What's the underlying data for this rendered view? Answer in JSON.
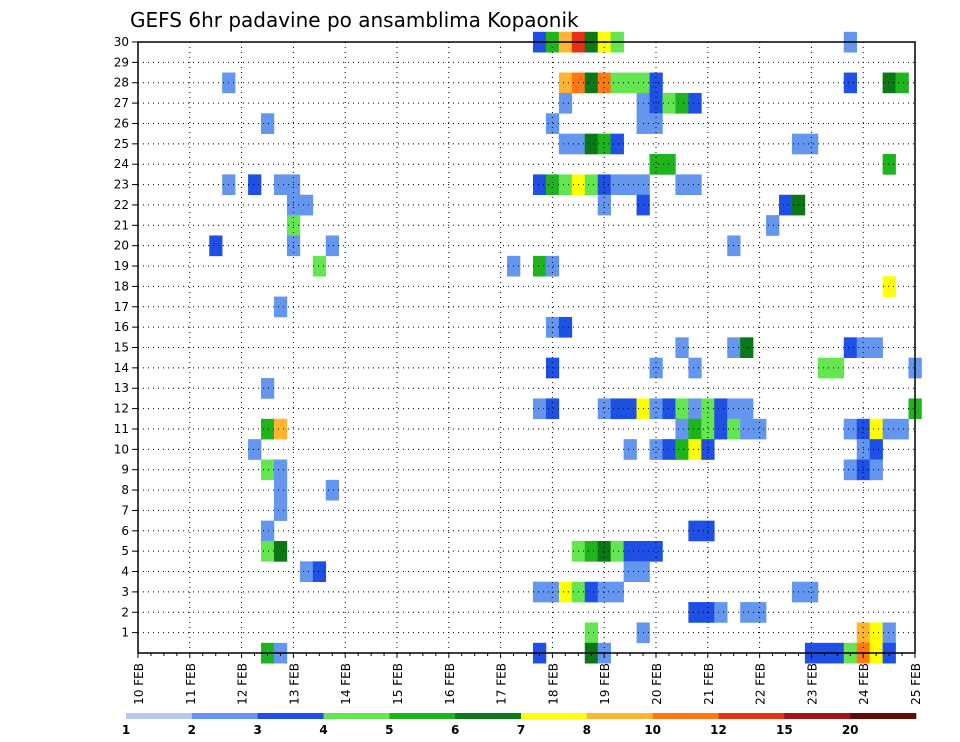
{
  "chart_data": {
    "type": "heatmap",
    "title": "GEFS 6hr padavine po ansamblima Kopaonik",
    "xlabel": "",
    "ylabel": "",
    "x_tick_labels": [
      "10 FEB",
      "11 FEB",
      "12 FEB",
      "13 FEB",
      "14 FEB",
      "15 FEB",
      "16 FEB",
      "17 FEB",
      "18 FEB",
      "19 FEB",
      "20 FEB",
      "21 FEB",
      "22 FEB",
      "23 FEB",
      "24 FEB",
      "25 FEB"
    ],
    "y_tick_labels": [
      "1",
      "2",
      "3",
      "4",
      "5",
      "6",
      "7",
      "8",
      "9",
      "10",
      "11",
      "12",
      "13",
      "14",
      "15",
      "16",
      "17",
      "18",
      "19",
      "20",
      "21",
      "22",
      "23",
      "24",
      "25",
      "26",
      "27",
      "28",
      "29",
      "30"
    ],
    "y_range": [
      0,
      30
    ],
    "x_range_days": [
      10,
      25
    ],
    "grid": true,
    "colorbar": {
      "position": "bottom",
      "tick_labels": [
        "1",
        "2",
        "3",
        "4",
        "5",
        "6",
        "7",
        "8",
        "10",
        "12",
        "15",
        "20"
      ],
      "colors": [
        "#b4c8f0",
        "#6496f0",
        "#1e50e6",
        "#64e650",
        "#1eb41e",
        "#0a7814",
        "#ffff00",
        "#ffb432",
        "#ff7814",
        "#e63214",
        "#a01414",
        "#640a0a"
      ]
    },
    "cells": [
      [
        17.75,
        30,
        2
      ],
      [
        18.0,
        30,
        4
      ],
      [
        18.25,
        30,
        7
      ],
      [
        18.5,
        30,
        9
      ],
      [
        18.75,
        30,
        5
      ],
      [
        19.0,
        30,
        6
      ],
      [
        19.25,
        30,
        3
      ],
      [
        23.75,
        30,
        1
      ],
      [
        11.75,
        28,
        1
      ],
      [
        18.25,
        28,
        7
      ],
      [
        18.5,
        28,
        8
      ],
      [
        18.75,
        28,
        5
      ],
      [
        19.0,
        28,
        8
      ],
      [
        19.25,
        28,
        3
      ],
      [
        19.5,
        28,
        3
      ],
      [
        19.75,
        28,
        3
      ],
      [
        20.0,
        28,
        2
      ],
      [
        23.75,
        28,
        2
      ],
      [
        24.5,
        28,
        5
      ],
      [
        24.75,
        28,
        4
      ],
      [
        18.25,
        27,
        1
      ],
      [
        19.75,
        27,
        1
      ],
      [
        20.0,
        27,
        2
      ],
      [
        20.25,
        27,
        3
      ],
      [
        20.5,
        27,
        4
      ],
      [
        20.75,
        27,
        2
      ],
      [
        12.5,
        26,
        1
      ],
      [
        18.0,
        26,
        1
      ],
      [
        19.75,
        26,
        1
      ],
      [
        20.0,
        26,
        1
      ],
      [
        18.25,
        25,
        1
      ],
      [
        18.5,
        25,
        1
      ],
      [
        18.75,
        25,
        5
      ],
      [
        19.0,
        25,
        4
      ],
      [
        19.25,
        25,
        2
      ],
      [
        22.75,
        25,
        1
      ],
      [
        23.0,
        25,
        1
      ],
      [
        20.0,
        24,
        4
      ],
      [
        20.25,
        24,
        4
      ],
      [
        24.5,
        24,
        4
      ],
      [
        11.75,
        23,
        1
      ],
      [
        12.25,
        23,
        2
      ],
      [
        12.75,
        23,
        1
      ],
      [
        13.0,
        23,
        1
      ],
      [
        17.75,
        23,
        2
      ],
      [
        18.0,
        23,
        4
      ],
      [
        18.25,
        23,
        3
      ],
      [
        18.5,
        23,
        6
      ],
      [
        18.75,
        23,
        3
      ],
      [
        19.0,
        23,
        2
      ],
      [
        19.25,
        23,
        1
      ],
      [
        19.5,
        23,
        1
      ],
      [
        19.75,
        23,
        1
      ],
      [
        20.5,
        23,
        1
      ],
      [
        20.75,
        23,
        1
      ],
      [
        13.0,
        22,
        1
      ],
      [
        13.25,
        22,
        1
      ],
      [
        19.0,
        22,
        1
      ],
      [
        19.75,
        22,
        2
      ],
      [
        22.5,
        22,
        2
      ],
      [
        22.75,
        22,
        5
      ],
      [
        13.0,
        21,
        3
      ],
      [
        22.25,
        21,
        1
      ],
      [
        11.5,
        20,
        2
      ],
      [
        13.0,
        20,
        1
      ],
      [
        13.75,
        20,
        1
      ],
      [
        21.5,
        20,
        1
      ],
      [
        13.5,
        19,
        3
      ],
      [
        17.25,
        19,
        1
      ],
      [
        17.75,
        19,
        4
      ],
      [
        18.0,
        19,
        1
      ],
      [
        24.5,
        18,
        6
      ],
      [
        12.75,
        17,
        1
      ],
      [
        18.0,
        16,
        1
      ],
      [
        18.25,
        16,
        2
      ],
      [
        20.5,
        15,
        1
      ],
      [
        21.5,
        15,
        1
      ],
      [
        21.75,
        15,
        5
      ],
      [
        23.75,
        15,
        2
      ],
      [
        24.0,
        15,
        1
      ],
      [
        24.25,
        15,
        1
      ],
      [
        18.0,
        14,
        2
      ],
      [
        20.0,
        14,
        1
      ],
      [
        20.75,
        14,
        1
      ],
      [
        23.25,
        14,
        3
      ],
      [
        23.5,
        14,
        3
      ],
      [
        25.0,
        14,
        1
      ],
      [
        12.5,
        13,
        1
      ],
      [
        17.75,
        12,
        1
      ],
      [
        18.0,
        12,
        2
      ],
      [
        19.0,
        12,
        1
      ],
      [
        19.25,
        12,
        2
      ],
      [
        19.5,
        12,
        2
      ],
      [
        19.75,
        12,
        6
      ],
      [
        20.0,
        12,
        1
      ],
      [
        20.25,
        12,
        2
      ],
      [
        20.5,
        12,
        3
      ],
      [
        20.75,
        12,
        1
      ],
      [
        21.0,
        12,
        3
      ],
      [
        21.25,
        12,
        2
      ],
      [
        21.5,
        12,
        1
      ],
      [
        21.75,
        12,
        1
      ],
      [
        25.0,
        12,
        4
      ],
      [
        12.5,
        11,
        4
      ],
      [
        12.75,
        11,
        7
      ],
      [
        20.5,
        11,
        1
      ],
      [
        20.75,
        11,
        4
      ],
      [
        21.0,
        11,
        3
      ],
      [
        21.25,
        11,
        2
      ],
      [
        21.5,
        11,
        3
      ],
      [
        21.75,
        11,
        1
      ],
      [
        22.0,
        11,
        1
      ],
      [
        23.75,
        11,
        1
      ],
      [
        24.0,
        11,
        2
      ],
      [
        24.25,
        11,
        6
      ],
      [
        24.5,
        11,
        1
      ],
      [
        24.75,
        11,
        1
      ],
      [
        12.25,
        10,
        1
      ],
      [
        19.5,
        10,
        1
      ],
      [
        20.0,
        10,
        1
      ],
      [
        20.25,
        10,
        2
      ],
      [
        20.5,
        10,
        4
      ],
      [
        20.75,
        10,
        6
      ],
      [
        21.0,
        10,
        2
      ],
      [
        24.0,
        10,
        1
      ],
      [
        24.25,
        10,
        2
      ],
      [
        12.5,
        9,
        3
      ],
      [
        12.75,
        9,
        1
      ],
      [
        23.75,
        9,
        1
      ],
      [
        24.0,
        9,
        2
      ],
      [
        24.25,
        9,
        1
      ],
      [
        12.75,
        8,
        1
      ],
      [
        13.75,
        8,
        1
      ],
      [
        12.75,
        7,
        1
      ],
      [
        12.5,
        6,
        1
      ],
      [
        20.75,
        6,
        2
      ],
      [
        21.0,
        6,
        2
      ],
      [
        12.5,
        5,
        3
      ],
      [
        12.75,
        5,
        5
      ],
      [
        18.5,
        5,
        3
      ],
      [
        18.75,
        5,
        4
      ],
      [
        19.0,
        5,
        5
      ],
      [
        19.25,
        5,
        3
      ],
      [
        19.5,
        5,
        2
      ],
      [
        19.75,
        5,
        2
      ],
      [
        20.0,
        5,
        2
      ],
      [
        13.25,
        4,
        1
      ],
      [
        13.5,
        4,
        2
      ],
      [
        19.5,
        4,
        1
      ],
      [
        19.75,
        4,
        1
      ],
      [
        17.75,
        3,
        1
      ],
      [
        18.0,
        3,
        1
      ],
      [
        18.25,
        3,
        6
      ],
      [
        18.5,
        3,
        3
      ],
      [
        18.75,
        3,
        2
      ],
      [
        19.0,
        3,
        1
      ],
      [
        19.25,
        3,
        1
      ],
      [
        22.75,
        3,
        1
      ],
      [
        23.0,
        3,
        1
      ],
      [
        20.75,
        2,
        2
      ],
      [
        21.0,
        2,
        2
      ],
      [
        21.25,
        2,
        1
      ],
      [
        21.75,
        2,
        1
      ],
      [
        22.0,
        2,
        1
      ],
      [
        18.75,
        1,
        3
      ],
      [
        19.75,
        1,
        1
      ],
      [
        24.0,
        1,
        7
      ],
      [
        24.25,
        1,
        6
      ],
      [
        24.5,
        1,
        1
      ],
      [
        12.5,
        0,
        4
      ],
      [
        12.75,
        0,
        1
      ],
      [
        17.75,
        0,
        2
      ],
      [
        18.75,
        0,
        5
      ],
      [
        19.0,
        0,
        1
      ],
      [
        23.0,
        0,
        2
      ],
      [
        23.25,
        0,
        2
      ],
      [
        23.5,
        0,
        2
      ],
      [
        23.75,
        0,
        3
      ],
      [
        24.0,
        0,
        8
      ],
      [
        24.25,
        0,
        6
      ],
      [
        24.5,
        0,
        2
      ]
    ]
  }
}
